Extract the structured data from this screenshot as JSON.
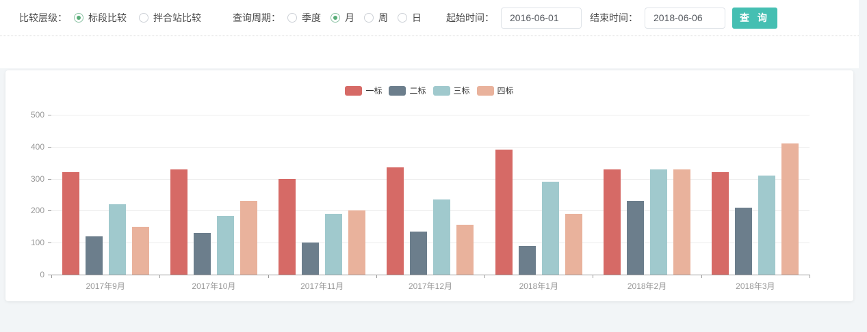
{
  "filter_bar": {
    "compare_level_label": "比较层级：",
    "compare_options": [
      {
        "label": "标段比较",
        "selected": true
      },
      {
        "label": "拌合站比较",
        "selected": false
      }
    ],
    "period_label": "查询周期：",
    "period_options": [
      {
        "label": "季度",
        "selected": false
      },
      {
        "label": "月",
        "selected": true
      },
      {
        "label": "周",
        "selected": false
      },
      {
        "label": "日",
        "selected": false
      }
    ],
    "start_time_label": "起始时间：",
    "start_time_value": "2016-06-01",
    "end_time_label": "结束时间：",
    "end_time_value": "2018-06-06",
    "query_button_label": "查 询",
    "accent_color": "#45bfb2",
    "radio_selected_color": "#58ad78"
  },
  "chart_data": {
    "type": "bar",
    "title": "",
    "xlabel": "",
    "ylabel": "",
    "categories": [
      "2017年9月",
      "2017年10月",
      "2017年11月",
      "2017年12月",
      "2018年1月",
      "2018年2月",
      "2018年3月"
    ],
    "series": [
      {
        "name": "一标",
        "color": "#d66a66",
        "values": [
          320,
          330,
          300,
          335,
          390,
          330,
          320
        ]
      },
      {
        "name": "二标",
        "color": "#6c7e8c",
        "values": [
          120,
          130,
          100,
          135,
          90,
          230,
          210
        ]
      },
      {
        "name": "三标",
        "color": "#a0c9cd",
        "values": [
          220,
          183,
          190,
          235,
          290,
          330,
          310
        ]
      },
      {
        "name": "四标",
        "color": "#e9b29c",
        "values": [
          150,
          230,
          200,
          155,
          190,
          330,
          410
        ]
      }
    ],
    "ylim": [
      0,
      500
    ],
    "yticks": [
      0,
      100,
      200,
      300,
      400,
      500
    ],
    "grid": true,
    "legend_position": "top",
    "axis_color": "#9a9a9a",
    "grid_color": "#ececec",
    "tick_label_color": "#999999"
  }
}
